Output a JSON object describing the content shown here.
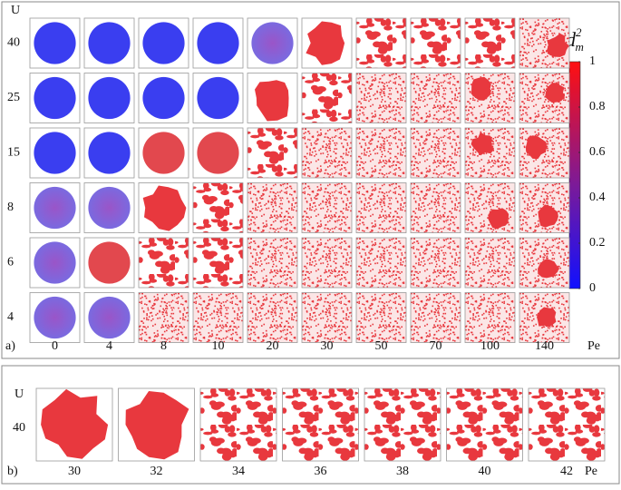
{
  "panel_a": {
    "label": "a)",
    "y_axis_label": "U",
    "x_axis_label": "Pe",
    "u_values": [
      "40",
      "25",
      "15",
      "8",
      "6",
      "4"
    ],
    "pe_values": [
      "0",
      "4",
      "8",
      "10",
      "20",
      "30",
      "50",
      "70",
      "100",
      "140"
    ],
    "colorbar": {
      "base": "d",
      "sup": "2",
      "sub": "m",
      "range": [
        0,
        1
      ],
      "ticks": [
        0,
        0.2,
        0.4,
        0.6,
        0.8,
        1
      ]
    }
  },
  "panel_b": {
    "label": "b)",
    "y_axis_label": "U",
    "u_value": "40",
    "x_axis_label": "Pe",
    "pe_values": [
      "30",
      "32",
      "34",
      "36",
      "38",
      "40",
      "42"
    ]
  }
}
